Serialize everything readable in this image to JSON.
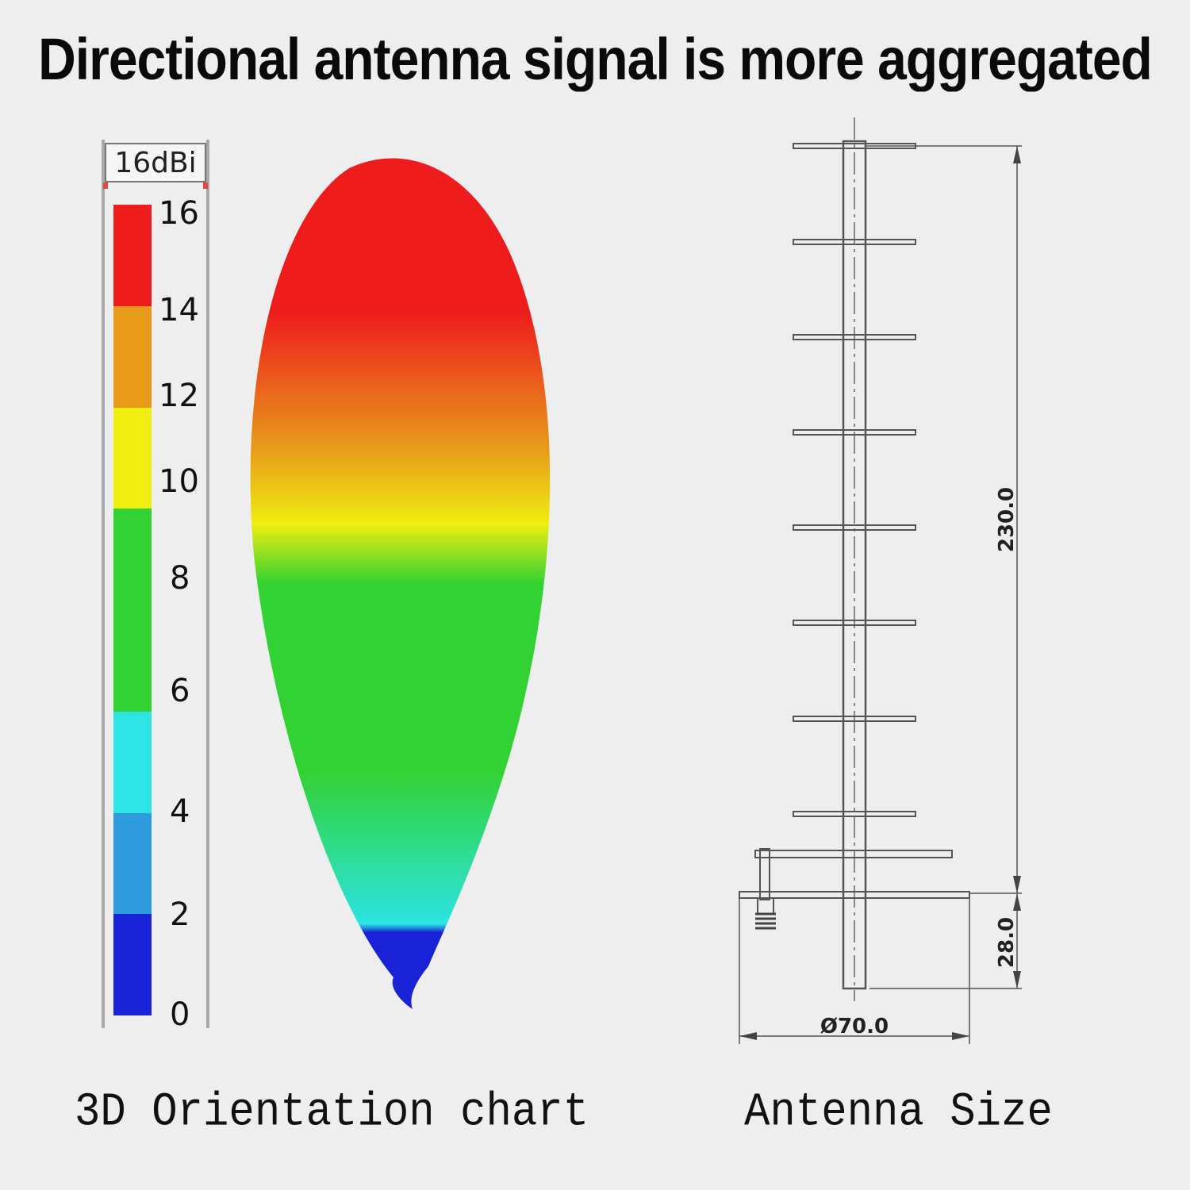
{
  "headline": "Directional antenna signal is more aggregated",
  "legend": {
    "title": "16dBi",
    "ticks": [
      "16",
      "14",
      "12",
      "10",
      "8",
      "6",
      "4",
      "2",
      "0"
    ],
    "segments": [
      {
        "from": 14,
        "to": 16,
        "color": "#ee1c1c"
      },
      {
        "from": 12,
        "to": 14,
        "color": "#e79a1c"
      },
      {
        "from": 10,
        "to": 12,
        "color": "#eeee10"
      },
      {
        "from": 8,
        "to": 10,
        "color": "#32d232"
      },
      {
        "from": 6,
        "to": 8,
        "color": "#32d232"
      },
      {
        "from": 4,
        "to": 6,
        "color": "#2ce4e4"
      },
      {
        "from": 2,
        "to": 4,
        "color": "#2e9cdc"
      },
      {
        "from": 0,
        "to": 2,
        "color": "#1a22d6"
      }
    ]
  },
  "pattern_colors": [
    "#1a22d6",
    "#2ce4e4",
    "#32d232",
    "#eeee10",
    "#e79a1c",
    "#ee1c1c"
  ],
  "drawing": {
    "element_count": 9,
    "dimensions": {
      "height": "230.0",
      "feed": "28.0",
      "diameter": "Ø70.0"
    }
  },
  "captions": {
    "left": "3D Orientation chart",
    "right": "Antenna Size"
  }
}
